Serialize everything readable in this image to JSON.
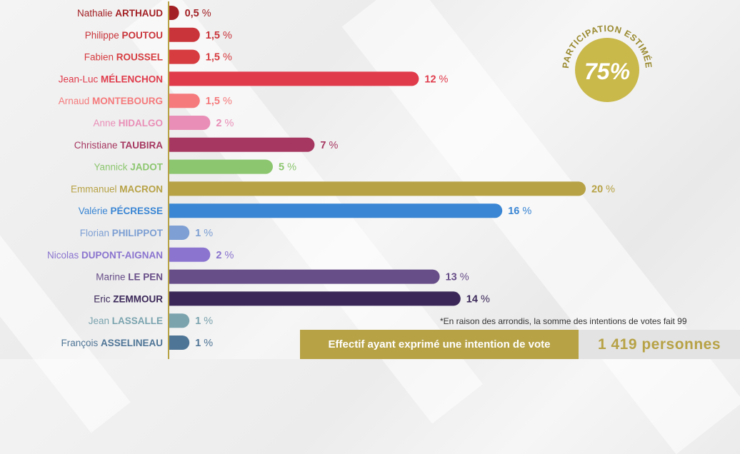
{
  "chart_data": {
    "type": "bar",
    "orientation": "horizontal",
    "unit_suffix": "%",
    "categories": [
      {
        "first": "Nathalie",
        "last": "ARTHAUD",
        "value": 0.5,
        "value_label": "0,5",
        "color": "#a32125"
      },
      {
        "first": "Philippe",
        "last": "POUTOU",
        "value": 1.5,
        "value_label": "1,5",
        "color": "#c9343a"
      },
      {
        "first": "Fabien",
        "last": "ROUSSEL",
        "value": 1.5,
        "value_label": "1,5",
        "color": "#d63c40"
      },
      {
        "first": "Jean-Luc",
        "last": "MÉLENCHON",
        "value": 12,
        "value_label": "12",
        "color": "#e03b4b"
      },
      {
        "first": "Arnaud",
        "last": "MONTEBOURG",
        "value": 1.5,
        "value_label": "1,5",
        "color": "#f57a7c"
      },
      {
        "first": "Anne",
        "last": "HIDALGO",
        "value": 2,
        "value_label": "2",
        "color": "#e98fb7"
      },
      {
        "first": "Christiane",
        "last": "TAUBIRA",
        "value": 7,
        "value_label": "7",
        "color": "#a63760"
      },
      {
        "first": "Yannick",
        "last": "JADOT",
        "value": 5,
        "value_label": "5",
        "color": "#8cc66f"
      },
      {
        "first": "Emmanuel",
        "last": "MACRON",
        "value": 20,
        "value_label": "20",
        "color": "#b7a246"
      },
      {
        "first": "Valérie",
        "last": "PÉCRESSE",
        "value": 16,
        "value_label": "16",
        "color": "#3a86d4"
      },
      {
        "first": "Florian",
        "last": "PHILIPPOT",
        "value": 1,
        "value_label": "1",
        "color": "#7d9fd3"
      },
      {
        "first": "Nicolas",
        "last": "DUPONT-AIGNAN",
        "value": 2,
        "value_label": "2",
        "color": "#8a74cf"
      },
      {
        "first": "Marine",
        "last": "LE PEN",
        "value": 13,
        "value_label": "13",
        "color": "#684e88"
      },
      {
        "first": "Eric",
        "last": "ZEMMOUR",
        "value": 14,
        "value_label": "14",
        "color": "#3b2859"
      },
      {
        "first": "Jean",
        "last": "LASSALLE",
        "value": 1,
        "value_label": "1",
        "color": "#7aa3ae"
      },
      {
        "first": "François",
        "last": "ASSELINEAU",
        "value": 1,
        "value_label": "1",
        "color": "#4f7596"
      }
    ],
    "xlim": [
      0,
      20
    ]
  },
  "participation": {
    "label": "PARTICIPATION ESTIMÉE",
    "value": "75%",
    "color": "#c9b84a"
  },
  "footnote": "*En raison des arrondis, la somme des intentions de votes fait 99",
  "effectif": {
    "label": "Effectif ayant exprimé une intention de vote",
    "value": "1 419 personnes"
  },
  "colors": {
    "axis": "#b7a246",
    "accent": "#b7a246"
  }
}
